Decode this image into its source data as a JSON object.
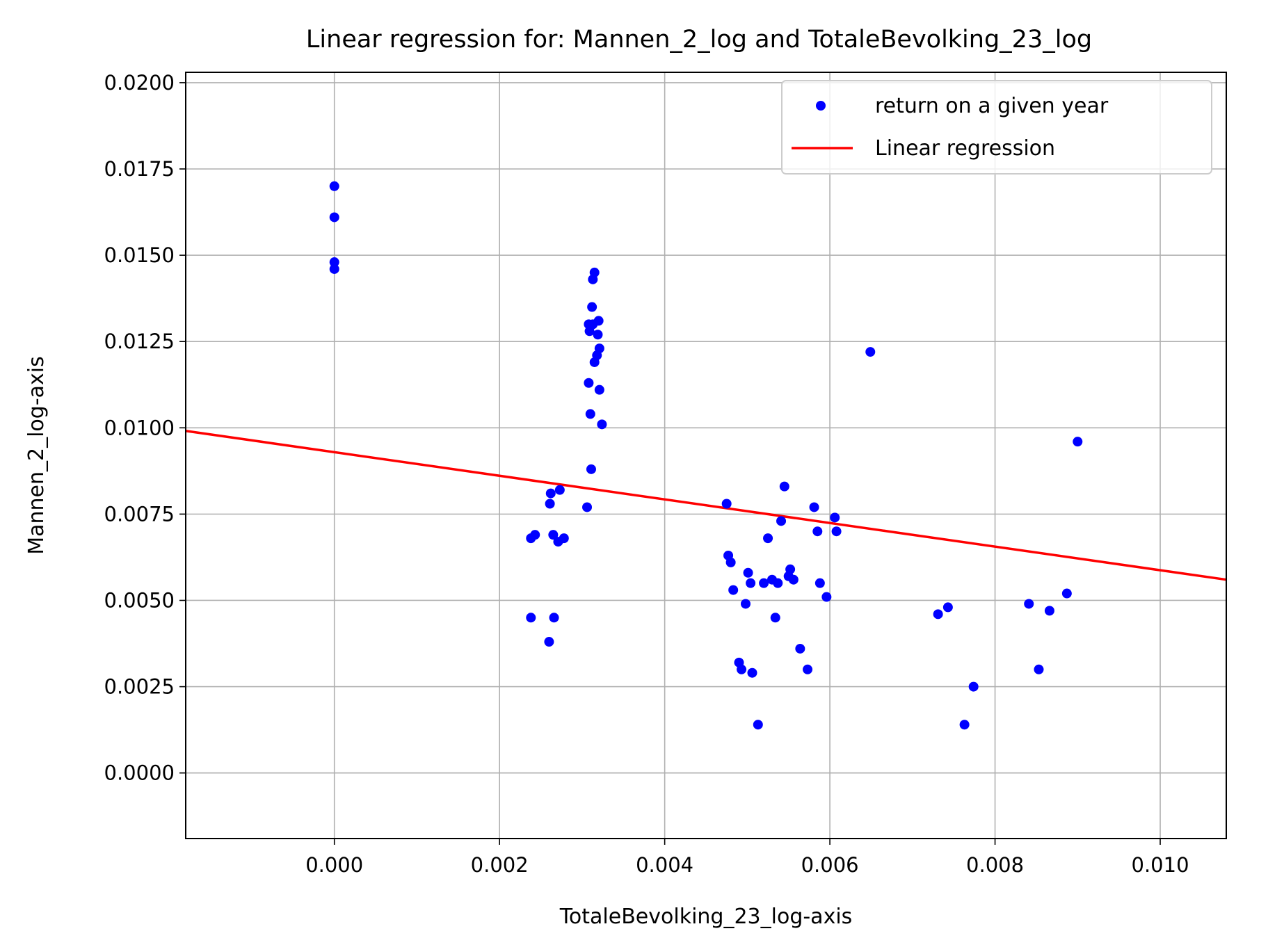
{
  "chart_data": {
    "type": "scatter",
    "title": "Linear regression for: Mannen_2_log and TotaleBevolking_23_log",
    "xlabel": "TotaleBevolking_23_log-axis",
    "ylabel": "Mannen_2_log-axis",
    "xlim": [
      -0.0018,
      0.0108
    ],
    "ylim": [
      -0.0019,
      0.0203
    ],
    "x_ticks": [
      0.0,
      0.002,
      0.004,
      0.006,
      0.008,
      0.01
    ],
    "x_tick_labels": [
      "0.000",
      "0.002",
      "0.004",
      "0.006",
      "0.008",
      "0.010"
    ],
    "y_ticks": [
      0.0,
      0.0025,
      0.005,
      0.0075,
      0.01,
      0.0125,
      0.015,
      0.0175,
      0.02
    ],
    "y_tick_labels": [
      "0.0000",
      "0.0025",
      "0.0050",
      "0.0075",
      "0.0100",
      "0.0125",
      "0.0150",
      "0.0175",
      "0.0200"
    ],
    "grid": true,
    "legend_position": "top-right",
    "series": [
      {
        "name": "return on a given year",
        "kind": "scatter",
        "color": "#0000ff",
        "points": [
          [
            0.0,
            0.017
          ],
          [
            0.0,
            0.0161
          ],
          [
            0.0,
            0.0148
          ],
          [
            0.0,
            0.0146
          ],
          [
            0.00238,
            0.0068
          ],
          [
            0.00243,
            0.0069
          ],
          [
            0.00238,
            0.0045
          ],
          [
            0.00262,
            0.0081
          ],
          [
            0.00261,
            0.0078
          ],
          [
            0.00265,
            0.0069
          ],
          [
            0.00271,
            0.0067
          ],
          [
            0.00278,
            0.0068
          ],
          [
            0.00273,
            0.0082
          ],
          [
            0.00266,
            0.0045
          ],
          [
            0.0026,
            0.0038
          ],
          [
            0.00306,
            0.0077
          ],
          [
            0.00311,
            0.0088
          ],
          [
            0.0031,
            0.0104
          ],
          [
            0.00308,
            0.0113
          ],
          [
            0.00318,
            0.0121
          ],
          [
            0.00315,
            0.0119
          ],
          [
            0.00321,
            0.0123
          ],
          [
            0.00321,
            0.0111
          ],
          [
            0.00324,
            0.0101
          ],
          [
            0.00309,
            0.0128
          ],
          [
            0.00308,
            0.013
          ],
          [
            0.00313,
            0.013
          ],
          [
            0.00319,
            0.0127
          ],
          [
            0.0032,
            0.0131
          ],
          [
            0.00312,
            0.0135
          ],
          [
            0.00313,
            0.0143
          ],
          [
            0.00315,
            0.0145
          ],
          [
            0.00475,
            0.0078
          ],
          [
            0.00477,
            0.0063
          ],
          [
            0.0048,
            0.0061
          ],
          [
            0.00483,
            0.0053
          ],
          [
            0.0049,
            0.0032
          ],
          [
            0.00493,
            0.003
          ],
          [
            0.00498,
            0.0049
          ],
          [
            0.00501,
            0.0058
          ],
          [
            0.00504,
            0.0055
          ],
          [
            0.00506,
            0.0029
          ],
          [
            0.00513,
            0.0014
          ],
          [
            0.0052,
            0.0055
          ],
          [
            0.00525,
            0.0068
          ],
          [
            0.0053,
            0.0056
          ],
          [
            0.00534,
            0.0045
          ],
          [
            0.00537,
            0.0055
          ],
          [
            0.00541,
            0.0073
          ],
          [
            0.00545,
            0.0083
          ],
          [
            0.0055,
            0.0057
          ],
          [
            0.00552,
            0.0059
          ],
          [
            0.00556,
            0.0056
          ],
          [
            0.00564,
            0.0036
          ],
          [
            0.00573,
            0.003
          ],
          [
            0.00581,
            0.0077
          ],
          [
            0.00585,
            0.007
          ],
          [
            0.00588,
            0.0055
          ],
          [
            0.00596,
            0.0051
          ],
          [
            0.00606,
            0.0074
          ],
          [
            0.00608,
            0.007
          ],
          [
            0.00649,
            0.0122
          ],
          [
            0.00731,
            0.0046
          ],
          [
            0.00743,
            0.0048
          ],
          [
            0.00763,
            0.0014
          ],
          [
            0.00774,
            0.0025
          ],
          [
            0.00841,
            0.0049
          ],
          [
            0.00853,
            0.003
          ],
          [
            0.00866,
            0.0047
          ],
          [
            0.00887,
            0.0052
          ],
          [
            0.009,
            0.0096
          ]
        ]
      },
      {
        "name": "Linear regression",
        "kind": "line",
        "color": "#ff0000",
        "points": [
          [
            -0.0018,
            0.00991
          ],
          [
            0.0108,
            0.0056
          ]
        ]
      }
    ]
  }
}
